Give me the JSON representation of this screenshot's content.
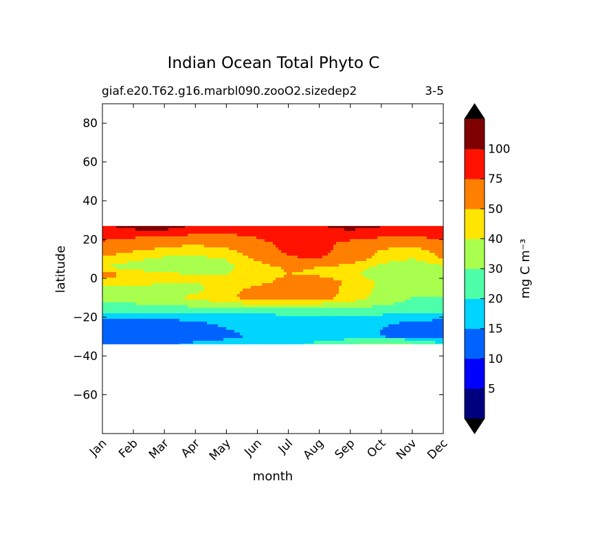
{
  "chart_data": {
    "type": "heatmap",
    "title": "Indian Ocean Total Phyto C",
    "subtitle_left": "giaf.e20.T62.g16.marbl090.zooO2.sizedep2",
    "subtitle_right": "3-5",
    "xlabel": "month",
    "ylabel": "latitude",
    "x_categories": [
      "Jan",
      "Feb",
      "Mar",
      "Apr",
      "May",
      "Jun",
      "Jul",
      "Aug",
      "Sep",
      "Oct",
      "Nov",
      "Dec"
    ],
    "ylim": [
      -80,
      90
    ],
    "yticks": [
      80,
      60,
      40,
      20,
      0,
      -20,
      -40,
      -60
    ],
    "ytick_labels": [
      "80",
      "60",
      "40",
      "20",
      "0",
      "−20",
      "−40",
      "−60"
    ],
    "data_lat_range": [
      -34,
      27
    ],
    "colorbar": {
      "label": "mg C m⁻³",
      "levels": [
        0,
        5,
        10,
        15,
        20,
        30,
        40,
        50,
        75,
        100,
        125
      ],
      "tick_labels": [
        "5",
        "10",
        "15",
        "20",
        "30",
        "40",
        "50",
        "75",
        "100"
      ],
      "colors": [
        "#00007f",
        "#0000ff",
        "#0063ff",
        "#00d5ff",
        "#4effa9",
        "#a9ff4e",
        "#ffe500",
        "#ff7f00",
        "#ff1300",
        "#7f0000"
      ],
      "extend": "both",
      "extend_color": "#000000"
    },
    "lat_rows": [
      -34,
      -30,
      -26,
      -22,
      -18,
      -14,
      -10,
      -6,
      -2,
      2,
      6,
      10,
      14,
      18,
      22,
      26
    ],
    "month_values": [
      [
        12,
        12,
        14,
        16,
        17,
        18,
        18,
        22,
        28,
        35,
        30,
        20
      ],
      [
        13,
        12,
        12,
        13,
        14,
        16,
        17,
        16,
        16,
        15,
        13,
        12
      ],
      [
        13,
        13,
        13,
        13,
        15,
        16,
        17,
        17,
        17,
        15,
        13,
        13
      ],
      [
        14,
        14,
        14,
        15,
        16,
        17,
        18,
        18,
        18,
        16,
        15,
        14
      ],
      [
        20,
        20,
        19,
        19,
        20,
        20,
        21,
        21,
        21,
        21,
        20,
        20
      ],
      [
        26,
        28,
        30,
        32,
        35,
        38,
        38,
        36,
        34,
        30,
        27,
        26
      ],
      [
        34,
        36,
        38,
        42,
        48,
        55,
        58,
        55,
        46,
        36,
        30,
        30
      ],
      [
        38,
        36,
        36,
        38,
        45,
        55,
        60,
        58,
        45,
        38,
        32,
        30
      ],
      [
        42,
        44,
        40,
        40,
        42,
        46,
        55,
        58,
        48,
        38,
        32,
        32
      ],
      [
        55,
        48,
        42,
        40,
        40,
        44,
        50,
        48,
        42,
        35,
        30,
        32
      ],
      [
        40,
        35,
        32,
        34,
        38,
        44,
        52,
        50,
        44,
        38,
        32,
        38
      ],
      [
        48,
        42,
        38,
        38,
        40,
        52,
        72,
        76,
        58,
        44,
        40,
        50
      ],
      [
        55,
        50,
        45,
        42,
        46,
        60,
        80,
        82,
        64,
        48,
        42,
        56
      ],
      [
        70,
        62,
        55,
        52,
        56,
        68,
        82,
        82,
        68,
        58,
        55,
        70
      ],
      [
        85,
        80,
        75,
        72,
        72,
        78,
        90,
        92,
        85,
        80,
        78,
        82
      ],
      [
        96,
        105,
        108,
        96,
        85,
        88,
        98,
        98,
        105,
        100,
        94,
        92
      ]
    ]
  }
}
